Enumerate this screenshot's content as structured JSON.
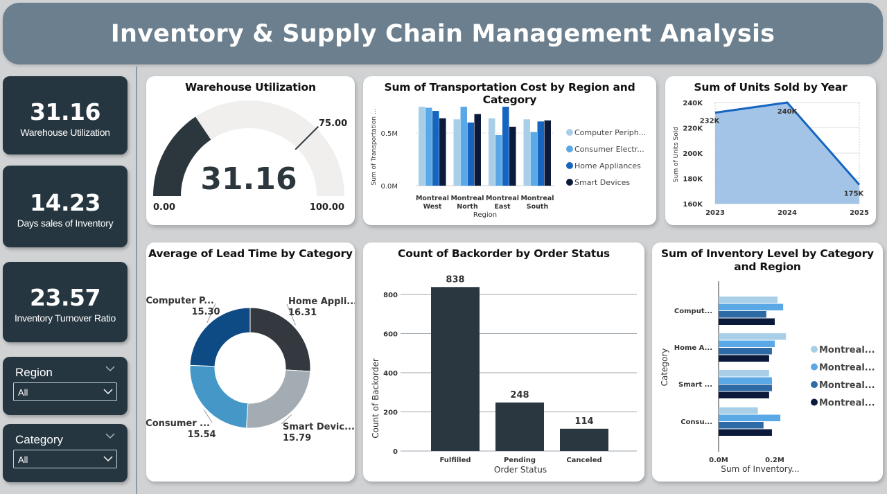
{
  "header": {
    "title": "Inventory & Supply Chain Management Analysis"
  },
  "kpis": [
    {
      "value": "31.16",
      "label": "Warehouse Utilization"
    },
    {
      "value": "14.23",
      "label": "Days sales of Inventory"
    },
    {
      "value": "23.57",
      "label": "Inventory Turnover Ratio"
    }
  ],
  "slicers": {
    "region": {
      "label": "Region",
      "value": "All"
    },
    "category": {
      "label": "Category",
      "value": "All"
    }
  },
  "charts": {
    "gauge": {
      "title": "Warehouse Utilization",
      "value": "31.16",
      "min": "0.00",
      "max": "100.00",
      "target": "75.00"
    },
    "transport": {
      "title": "Sum of Transportation Cost by Region and Category",
      "ylabel": "Sum of Transportation ...",
      "xlabel": "Region",
      "yticks": [
        "0.5M",
        "0.0M"
      ]
    },
    "units": {
      "title": "Sum of Units Sold by Year",
      "ylabel": "Sum of Units Sold",
      "yticks": [
        "240K",
        "220K",
        "200K",
        "180K",
        "160K"
      ],
      "xticks": [
        "2023",
        "2024",
        "2025"
      ],
      "labels": [
        "232K",
        "240K",
        "175K"
      ]
    },
    "lead": {
      "title": "Average of Lead Time by Category"
    },
    "backorder": {
      "title": "Count of Backorder by Order Status",
      "ylabel": "Count of Backorder",
      "xlabel": "Order Status",
      "yticks": [
        "800",
        "600",
        "400",
        "200",
        "0"
      ]
    },
    "inventory": {
      "title": "Sum of Inventory Level by Category and Region",
      "ylabel": "Category",
      "xlabel": "Sum of Inventory...",
      "xticks": [
        "0.0M",
        "0.2M"
      ],
      "ytick_labels": [
        "Comput...",
        "Home A...",
        "Smart ...",
        "Consu..."
      ],
      "legend": [
        "Montreal...",
        "Montreal...",
        "Montreal...",
        "Montreal..."
      ]
    }
  },
  "chart_data": [
    {
      "type": "bar",
      "title": "Sum of Transportation Cost by Region and Category",
      "xlabel": "Region",
      "ylabel": "Sum of Transportation ...",
      "categories": [
        "Montreal West",
        "Montreal North",
        "Montreal East",
        "Montreal South"
      ],
      "ylim": [
        0,
        0.8
      ],
      "colors": [
        "#a9cfe8",
        "#5aa8e6",
        "#1565c0",
        "#0b1a3a"
      ],
      "series": [
        {
          "name": "Computer Periph...",
          "values": [
            0.75,
            0.63,
            0.64,
            0.63
          ]
        },
        {
          "name": "Consumer Electr...",
          "values": [
            0.74,
            0.75,
            0.48,
            0.51
          ]
        },
        {
          "name": "Home Appliances",
          "values": [
            0.71,
            0.6,
            0.75,
            0.61
          ]
        },
        {
          "name": "Smart Devices",
          "values": [
            0.64,
            0.68,
            0.56,
            0.62
          ]
        }
      ]
    },
    {
      "type": "area",
      "title": "Sum of Units Sold by Year",
      "ylabel": "Sum of Units Sold",
      "x": [
        2023,
        2024,
        2025
      ],
      "values": [
        232,
        240,
        175
      ],
      "unit": "K",
      "ylim": [
        160,
        240
      ],
      "color": "#1565c0"
    },
    {
      "type": "pie",
      "title": "Average of Lead Time by Category",
      "categories": [
        "Home Appli...",
        "Smart Devic...",
        "Consumer ...",
        "Computer P..."
      ],
      "values": [
        16.31,
        15.79,
        15.54,
        15.3
      ],
      "colors": [
        "#33393e",
        "#a3acb3",
        "#4497c7",
        "#0e4a84"
      ]
    },
    {
      "type": "bar",
      "title": "Count of Backorder by Order Status",
      "xlabel": "Order Status",
      "ylabel": "Count of Backorder",
      "categories": [
        "Fulfilled",
        "Pending",
        "Canceled"
      ],
      "values": [
        838,
        248,
        114
      ],
      "ylim": [
        0,
        900
      ],
      "color": "#2b3740"
    },
    {
      "type": "bar",
      "orientation": "horizontal",
      "title": "Sum of Inventory Level by Category and Region",
      "ylabel": "Category",
      "xlabel": "Sum of Inventory...",
      "categories": [
        "Comput...",
        "Home A...",
        "Smart ...",
        "Consu..."
      ],
      "colors": [
        "#a9cfe8",
        "#5aa8e6",
        "#2e6aa6",
        "#0b1a3a"
      ],
      "xlim": [
        0,
        0.25
      ],
      "series": [
        {
          "values": [
            0.21,
            0.24,
            0.18,
            0.14
          ]
        },
        {
          "values": [
            0.23,
            0.2,
            0.19,
            0.22
          ]
        },
        {
          "values": [
            0.17,
            0.19,
            0.19,
            0.16
          ]
        },
        {
          "values": [
            0.2,
            0.18,
            0.18,
            0.19
          ]
        }
      ]
    }
  ]
}
